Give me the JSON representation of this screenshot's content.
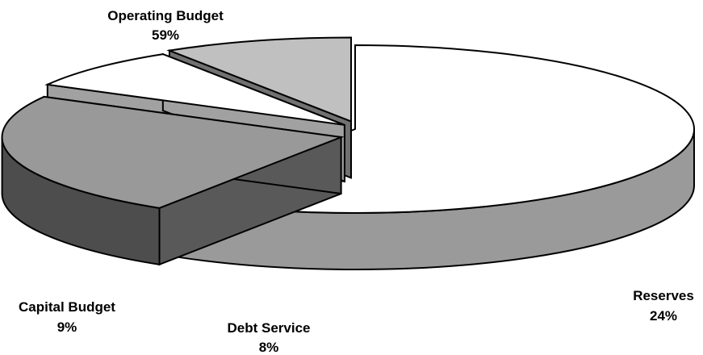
{
  "chart_data": {
    "type": "pie",
    "style": "3d-exploded",
    "slices": [
      {
        "name": "Operating Budget",
        "pct_label": "59%",
        "value": 59,
        "top_color": "#ffffff",
        "side_color": "#9a9a9a"
      },
      {
        "name": "Reserves",
        "pct_label": "24%",
        "value": 24,
        "top_color": "#999999",
        "side_color": "#4d4d4d"
      },
      {
        "name": "Debt Service",
        "pct_label": "8%",
        "value": 8,
        "top_color": "#ffffff",
        "side_color": "#8c8c8c"
      },
      {
        "name": "Capital Budget",
        "pct_label": "9%",
        "value": 9,
        "top_color": "#c0c0c0",
        "side_color": "#626262"
      }
    ],
    "outline_color": "#000000"
  }
}
